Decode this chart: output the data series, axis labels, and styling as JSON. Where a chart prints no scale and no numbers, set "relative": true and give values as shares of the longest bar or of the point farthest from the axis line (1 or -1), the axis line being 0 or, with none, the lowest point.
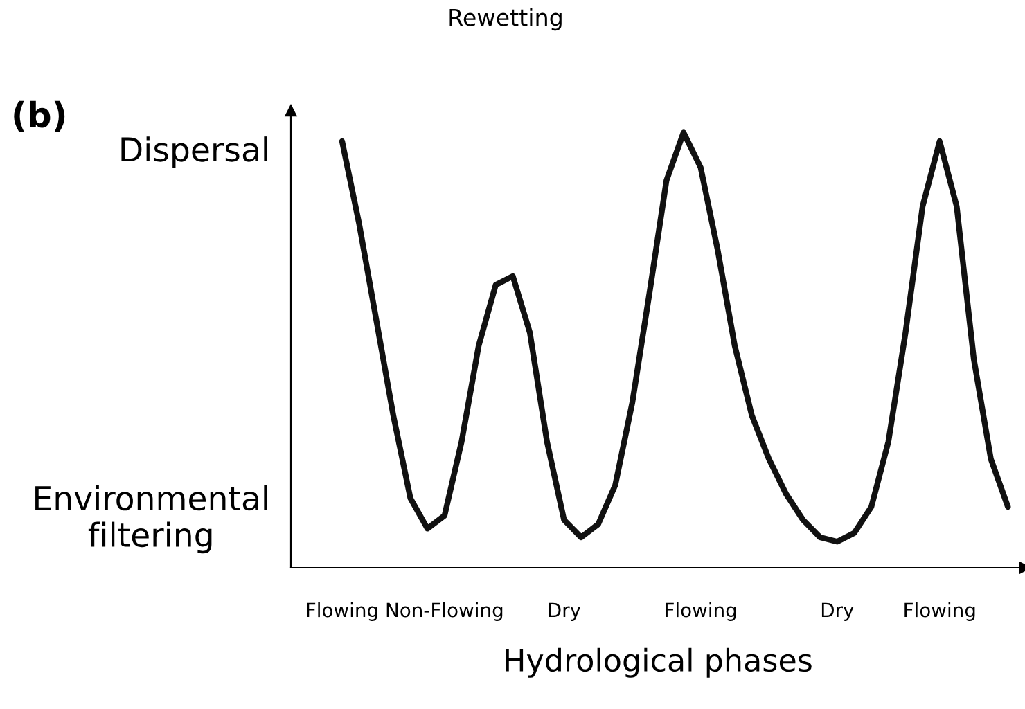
{
  "chart_data": {
    "type": "line",
    "title": "(b)",
    "xlabel": "Hydrological phases",
    "relative": true,
    "annotations": [
      "Rewetting",
      "Dispersal",
      "Environmental\nfiltering"
    ],
    "categories": [
      "Flowing",
      null,
      null,
      null,
      null,
      null,
      "Non-Flowing",
      null,
      null,
      null,
      null,
      null,
      null,
      "Dry",
      null,
      null,
      null,
      null,
      null,
      null,
      null,
      "Flowing",
      null,
      null,
      null,
      null,
      null,
      null,
      null,
      "Dry",
      null,
      null,
      null,
      null,
      null,
      "Flowing",
      null,
      null,
      null,
      null
    ],
    "series": [
      {
        "color": "#111111",
        "values": [
          0.98,
          0.79,
          0.57,
          0.35,
          0.16,
          0.09,
          0.12,
          0.29,
          0.51,
          0.65,
          0.67,
          0.54,
          0.29,
          0.11,
          0.07,
          0.1,
          0.19,
          0.38,
          0.63,
          0.89,
          1.0,
          0.92,
          0.73,
          0.51,
          0.35,
          0.25,
          0.17,
          0.11,
          0.07,
          0.06,
          0.08,
          0.14,
          0.29,
          0.54,
          0.83,
          0.98,
          0.83,
          0.48,
          0.25,
          0.14
        ]
      }
    ],
    "grid": false,
    "legend": false,
    "marker": "none",
    "line_style": "solid"
  }
}
